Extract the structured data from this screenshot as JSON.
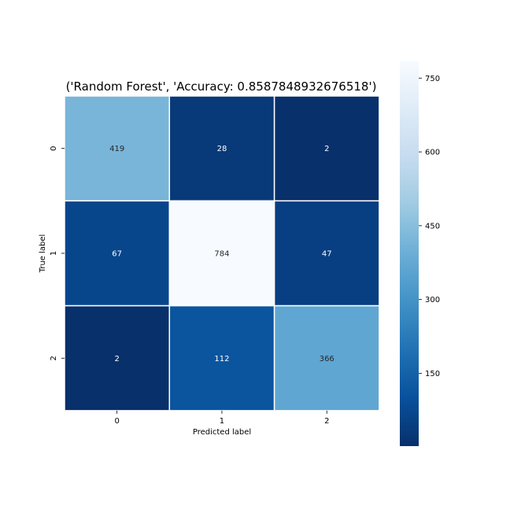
{
  "chart_data": {
    "type": "heatmap",
    "title": "('Random Forest', 'Accuracy: 0.8587848932676518')",
    "xlabel": "Predicted label",
    "ylabel": "True label",
    "x_categories": [
      "0",
      "1",
      "2"
    ],
    "y_categories": [
      "0",
      "1",
      "2"
    ],
    "values": [
      [
        419,
        28,
        2
      ],
      [
        67,
        784,
        47
      ],
      [
        2,
        112,
        366
      ]
    ],
    "colormap": "Blues_r",
    "colors": {
      "low": "#08306b",
      "high": "#f7fbff",
      "grid": "#ffffff",
      "text_dark": "#262626",
      "text_light": "#ffffff"
    },
    "colorbar": {
      "min": 2,
      "max": 784,
      "ticks": [
        150,
        300,
        450,
        600,
        750
      ]
    },
    "grid": false
  }
}
